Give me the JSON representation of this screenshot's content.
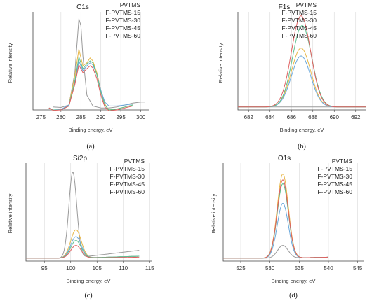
{
  "colors": {
    "PVTMS": "#9a9a9a",
    "F-PVTMS-15": "#e8b84a",
    "F-PVTMS-30": "#6aa8dc",
    "F-PVTMS-45": "#5cbf8e",
    "F-PVTMS-60": "#e06060"
  },
  "chart_data": [
    {
      "type": "line",
      "panel": "(a)",
      "title": "C1s",
      "xlabel": "Binding energy, eV",
      "ylabel": "Relative intensity",
      "xlim": [
        273,
        302
      ],
      "xticks": [
        275,
        280,
        285,
        290,
        295,
        300
      ],
      "ylim": [
        0,
        1
      ],
      "grid": "vertical",
      "legend": "top-right",
      "series": [
        {
          "name": "PVTMS",
          "x": [
            278,
            280,
            282,
            283.5,
            284.5,
            285,
            285.5,
            286.5,
            288,
            290,
            292,
            294,
            296,
            298,
            300,
            301
          ],
          "y": [
            0.03,
            0.025,
            0.05,
            0.38,
            0.93,
            0.86,
            0.55,
            0.15,
            0.04,
            0.02,
            0.02,
            0.03,
            0.05,
            0.07,
            0.08,
            0.08
          ]
        },
        {
          "name": "F-PVTMS-15",
          "x": [
            277,
            278,
            280,
            282,
            283.5,
            284.5,
            285.5,
            286.5,
            287.3,
            288,
            289,
            290,
            291,
            292,
            294,
            296,
            298
          ],
          "y": [
            0.02,
            0.0,
            0.0,
            0.05,
            0.35,
            0.62,
            0.45,
            0.48,
            0.53,
            0.5,
            0.38,
            0.2,
            0.06,
            0.0,
            0.01,
            0.03,
            0.05
          ]
        },
        {
          "name": "F-PVTMS-30",
          "x": [
            277,
            278,
            280,
            282,
            283.5,
            284.5,
            285.5,
            286.5,
            287.3,
            288,
            289,
            290,
            291,
            292,
            294,
            296,
            298
          ],
          "y": [
            0.02,
            0.0,
            0.005,
            0.05,
            0.28,
            0.5,
            0.4,
            0.45,
            0.48,
            0.46,
            0.36,
            0.2,
            0.08,
            0.04,
            0.04,
            0.05,
            0.06
          ]
        },
        {
          "name": "F-PVTMS-45",
          "x": [
            277,
            278,
            280,
            282,
            283.5,
            284.5,
            285.5,
            286.5,
            287.3,
            288,
            289,
            290,
            291,
            292,
            294,
            296,
            298
          ],
          "y": [
            0.02,
            0.0,
            0.0,
            0.04,
            0.3,
            0.54,
            0.42,
            0.47,
            0.5,
            0.48,
            0.36,
            0.18,
            0.05,
            0.0,
            0.01,
            0.03,
            0.05
          ]
        },
        {
          "name": "F-PVTMS-60",
          "x": [
            277,
            278,
            280,
            282,
            283.5,
            284.5,
            285.5,
            286.5,
            287.3,
            288,
            289,
            290,
            291,
            292,
            294,
            296,
            298
          ],
          "y": [
            0.02,
            -0.005,
            0.0,
            0.04,
            0.26,
            0.46,
            0.38,
            0.42,
            0.45,
            0.43,
            0.32,
            0.15,
            0.03,
            -0.01,
            0.0,
            0.02,
            0.04
          ]
        }
      ]
    },
    {
      "type": "line",
      "panel": "(b)",
      "title": "F1s",
      "xlabel": "Binding energy, eV",
      "ylabel": "Relative intensity",
      "xlim": [
        681,
        693
      ],
      "xticks": [
        682,
        684,
        686,
        688,
        690,
        692
      ],
      "ylim": [
        0,
        1
      ],
      "grid": "vertical",
      "legend": "top-right",
      "series": [
        {
          "name": "PVTMS",
          "x": [
            681,
            693
          ],
          "y": [
            0.03,
            0.03
          ]
        },
        {
          "name": "F-PVTMS-15",
          "gauss": {
            "center": 686.9,
            "sigma": 0.9,
            "amp": 0.6,
            "base": 0.03
          }
        },
        {
          "name": "F-PVTMS-30",
          "gauss": {
            "center": 686.9,
            "sigma": 0.9,
            "amp": 0.52,
            "base": 0.03
          }
        },
        {
          "name": "F-PVTMS-45",
          "gauss": {
            "center": 687.0,
            "sigma": 0.9,
            "amp": 0.83,
            "base": 0.03
          }
        },
        {
          "name": "F-PVTMS-60",
          "gauss": {
            "center": 686.9,
            "sigma": 0.9,
            "amp": 0.93,
            "base": 0.03
          }
        }
      ]
    },
    {
      "type": "line",
      "panel": "(c)",
      "title": "Si2p",
      "xlabel": "Binding energy, eV",
      "ylabel": "Relative intensity",
      "xlim": [
        91.5,
        115.5
      ],
      "xticks": [
        95,
        100,
        105,
        110,
        115
      ],
      "ylim": [
        0,
        1
      ],
      "grid": "vertical",
      "legend": "top-right",
      "series": [
        {
          "name": "PVTMS",
          "gauss": {
            "center": 100.4,
            "sigma": 0.75,
            "amp": 0.88,
            "base": 0.03,
            "tail_to": 113,
            "tail_end": 0.11
          }
        },
        {
          "name": "F-PVTMS-15",
          "gauss": {
            "center": 101.0,
            "sigma": 1.0,
            "amp": 0.29,
            "base": 0.03,
            "tail_to": 113,
            "tail_end": 0.05
          }
        },
        {
          "name": "F-PVTMS-30",
          "gauss": {
            "center": 101.0,
            "sigma": 1.0,
            "amp": 0.22,
            "base": 0.03,
            "tail_to": 113,
            "tail_end": 0.05
          }
        },
        {
          "name": "F-PVTMS-45",
          "gauss": {
            "center": 101.0,
            "sigma": 1.0,
            "amp": 0.18,
            "base": 0.03,
            "tail_to": 113,
            "tail_end": 0.05
          }
        },
        {
          "name": "F-PVTMS-60",
          "gauss": {
            "center": 101.0,
            "sigma": 1.0,
            "amp": 0.13,
            "base": 0.03,
            "tail_to": 113,
            "tail_end": 0.04
          }
        }
      ]
    },
    {
      "type": "line",
      "panel": "(d)",
      "title": "O1s",
      "xlabel": "Binding energy, eV",
      "ylabel": "Relative intensity",
      "xlim": [
        522,
        546
      ],
      "xticks": [
        525,
        530,
        535,
        540,
        545
      ],
      "ylim": [
        0,
        1
      ],
      "grid": "vertical",
      "legend": "top-right",
      "series": [
        {
          "name": "PVTMS",
          "gauss": {
            "center": 532.2,
            "sigma": 0.9,
            "amp": 0.13,
            "base": 0.03,
            "tail_to": 540,
            "tail_end": 0.04
          }
        },
        {
          "name": "F-PVTMS-15",
          "gauss": {
            "center": 532.2,
            "sigma": 0.95,
            "amp": 0.86,
            "base": 0.03,
            "tail_to": 540,
            "tail_end": 0.04
          }
        },
        {
          "name": "F-PVTMS-30",
          "gauss": {
            "center": 532.2,
            "sigma": 0.95,
            "amp": 0.56,
            "base": 0.03,
            "tail_to": 540,
            "tail_end": 0.04
          }
        },
        {
          "name": "F-PVTMS-45",
          "gauss": {
            "center": 532.2,
            "sigma": 0.95,
            "amp": 0.76,
            "base": 0.03,
            "tail_to": 540,
            "tail_end": 0.04
          }
        },
        {
          "name": "F-PVTMS-60",
          "gauss": {
            "center": 532.2,
            "sigma": 0.95,
            "amp": 0.8,
            "base": 0.03,
            "tail_to": 540,
            "tail_end": 0.04
          }
        }
      ]
    }
  ]
}
